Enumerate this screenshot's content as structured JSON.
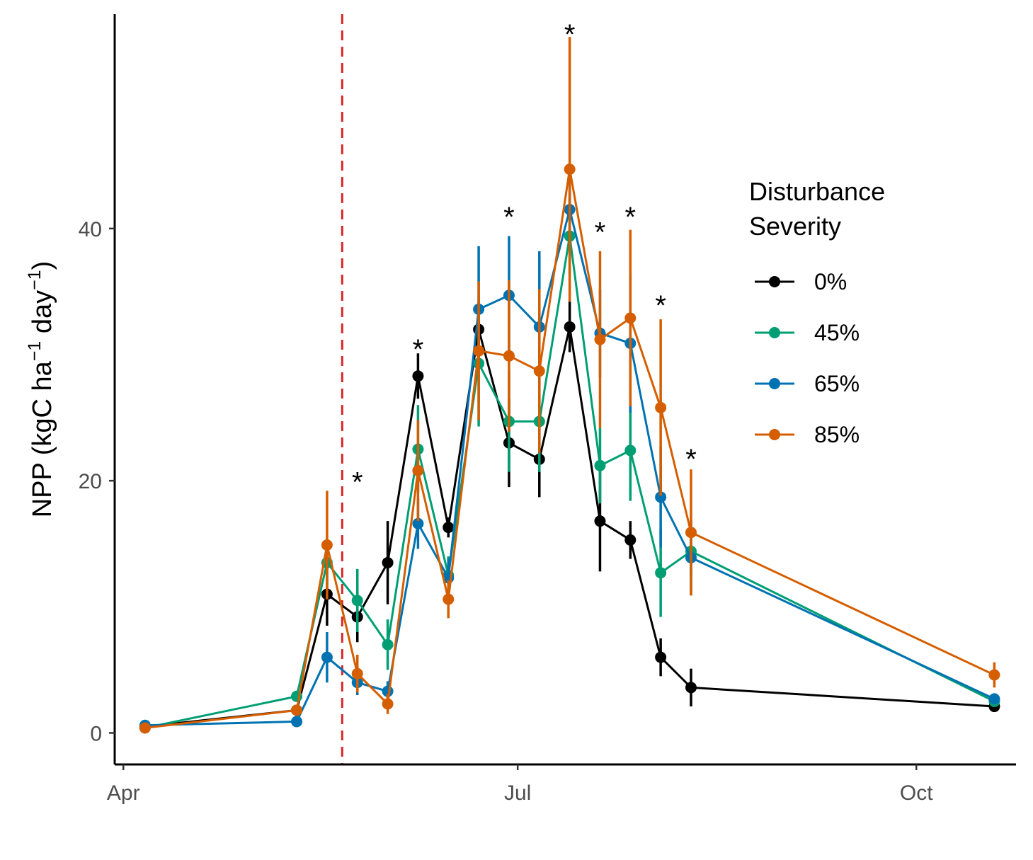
{
  "chart_data": {
    "type": "line",
    "title": "",
    "xlabel": "",
    "ylabel": "NPP (kgC ha⁻¹ day⁻¹)",
    "ylabel_parts": {
      "lead": "NPP (kgC ha",
      "exp1": "−1",
      "mid": " day",
      "exp2": "−1",
      "tail": ")"
    },
    "x_unit": "day of year",
    "xlim": [
      89,
      297
    ],
    "ylim": [
      -2.5,
      57
    ],
    "x_ticks": [
      {
        "label": "Apr",
        "value": 91
      },
      {
        "label": "Jul",
        "value": 182
      },
      {
        "label": "Oct",
        "value": 274
      }
    ],
    "y_ticks": [
      0,
      20,
      40
    ],
    "disturbance_line_x": 141.5,
    "disturbance_line_color": "#d62728",
    "legend_title_lines": [
      "Disturbance",
      "Severity"
    ],
    "x": [
      96,
      131,
      138,
      145,
      152,
      159,
      166,
      173,
      180,
      187,
      194,
      201,
      208,
      215,
      222,
      292
    ],
    "series": [
      {
        "name": "0%",
        "color": "#000000",
        "values": [
          0.5,
          1.8,
          11.0,
          9.2,
          13.5,
          28.3,
          16.3,
          32.0,
          23.0,
          21.7,
          32.2,
          16.8,
          15.3,
          6.0,
          3.6,
          2.1
        ],
        "errors": [
          0.2,
          0.3,
          2.5,
          2.0,
          3.3,
          1.8,
          0.8,
          1.5,
          3.5,
          3.0,
          2.0,
          4.0,
          1.5,
          1.5,
          1.5,
          0.3
        ]
      },
      {
        "name": "45%",
        "color": "#009e73",
        "values": [
          0.4,
          2.9,
          13.5,
          10.5,
          7.0,
          22.5,
          12.5,
          29.3,
          24.7,
          24.7,
          39.4,
          21.2,
          22.4,
          12.7,
          14.4,
          2.5
        ],
        "errors": [
          0.2,
          0.3,
          2.0,
          2.5,
          2.0,
          3.5,
          1.5,
          5.0,
          4.0,
          4.0,
          3.0,
          3.0,
          4.0,
          3.5,
          2.0,
          0.3
        ]
      },
      {
        "name": "65%",
        "color": "#0072b2",
        "values": [
          0.6,
          0.9,
          6.0,
          4.0,
          3.3,
          16.6,
          12.3,
          33.6,
          34.7,
          32.2,
          41.5,
          31.7,
          30.9,
          18.7,
          13.9,
          2.7
        ],
        "errors": [
          0.2,
          0.2,
          2.0,
          1.0,
          0.8,
          2.0,
          1.5,
          5.0,
          4.7,
          6.0,
          3.0,
          3.5,
          5.5,
          4.0,
          3.0,
          0.3
        ]
      },
      {
        "name": "85%",
        "color": "#d55e00",
        "values": [
          0.4,
          1.8,
          14.9,
          4.7,
          2.3,
          20.8,
          10.6,
          30.3,
          29.9,
          28.7,
          44.7,
          31.2,
          32.9,
          25.8,
          15.9,
          4.6
        ],
        "errors": [
          0.2,
          0.3,
          4.3,
          1.5,
          0.8,
          4.0,
          1.5,
          5.5,
          6.0,
          6.5,
          10.5,
          7.0,
          7.0,
          7.0,
          5.0,
          1.0
        ]
      }
    ],
    "significance_markers": [
      {
        "x": 145,
        "y": 20.5,
        "label": "*"
      },
      {
        "x": 159,
        "y": 31.0,
        "label": "*"
      },
      {
        "x": 180,
        "y": 41.5,
        "label": "*"
      },
      {
        "x": 194,
        "y": 56.0,
        "label": "*"
      },
      {
        "x": 201,
        "y": 40.3,
        "label": "*"
      },
      {
        "x": 208,
        "y": 41.5,
        "label": "*"
      },
      {
        "x": 215,
        "y": 34.5,
        "label": "*"
      },
      {
        "x": 222,
        "y": 22.3,
        "label": "*"
      }
    ]
  }
}
